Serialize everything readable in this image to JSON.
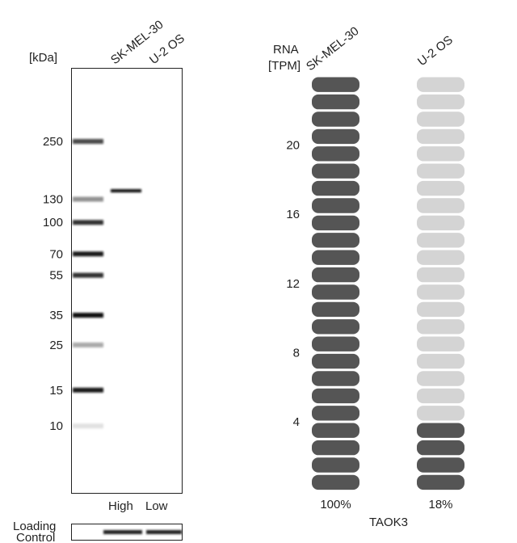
{
  "western_blot": {
    "unit_label": "[kDa]",
    "lanes": [
      "SK-MEL-30",
      "U-2 OS"
    ],
    "markers": [
      250,
      130,
      100,
      70,
      55,
      35,
      25,
      15,
      10
    ],
    "lane_bands": [
      [
        143
      ],
      []
    ],
    "levels": [
      "High",
      "Low"
    ],
    "loading_control": [
      "Loading",
      "Control"
    ]
  },
  "rna": {
    "axis_label": [
      "RNA",
      "[TPM]"
    ],
    "cells": [
      "SK-MEL-30",
      "U-2 OS"
    ],
    "values": [
      24,
      4.3
    ],
    "value_labels": [
      "100%",
      "18%"
    ],
    "ylim": [
      0,
      24
    ],
    "yticks": [
      4,
      8,
      12,
      16,
      20
    ],
    "gene": "TAOK3",
    "colors": [
      "#555555",
      "#555555"
    ],
    "empty_color": "#d4d4d4"
  }
}
